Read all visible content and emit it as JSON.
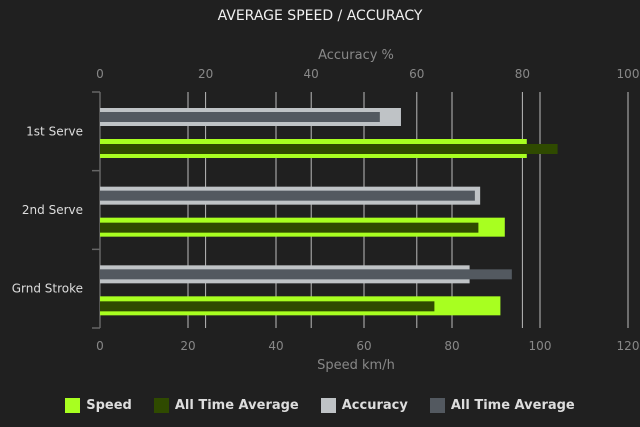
{
  "chart_data": {
    "type": "bar",
    "title": "AVERAGE SPEED / ACCURACY",
    "categories": [
      "1st Serve",
      "2nd Serve",
      "Grnd Stroke"
    ],
    "speed_axis": {
      "label": "Speed km/h",
      "range": [
        0,
        120
      ],
      "ticks": [
        "0",
        "20",
        "40",
        "60",
        "80",
        "100",
        "120"
      ],
      "position": "bottom"
    },
    "accuracy_axis": {
      "label": "Accuracy %",
      "range": [
        0,
        100
      ],
      "ticks": [
        "0",
        "20",
        "40",
        "60",
        "80",
        "100"
      ],
      "position": "top"
    },
    "grid": true,
    "legend_position": "bottom",
    "series": [
      {
        "name": "Speed",
        "axis": "speed",
        "color": "#a8ff20",
        "values": [
          97,
          92,
          91
        ]
      },
      {
        "name": "All Time Average",
        "axis": "speed",
        "color": "#2f4a00",
        "values": [
          104,
          86,
          76
        ]
      },
      {
        "name": "Accuracy",
        "axis": "accuracy",
        "color": "#bfc3c6",
        "values": [
          57,
          72,
          70
        ]
      },
      {
        "name": "All Time Average",
        "axis": "accuracy",
        "color": "#535960",
        "values": [
          53,
          71,
          78
        ]
      }
    ]
  }
}
